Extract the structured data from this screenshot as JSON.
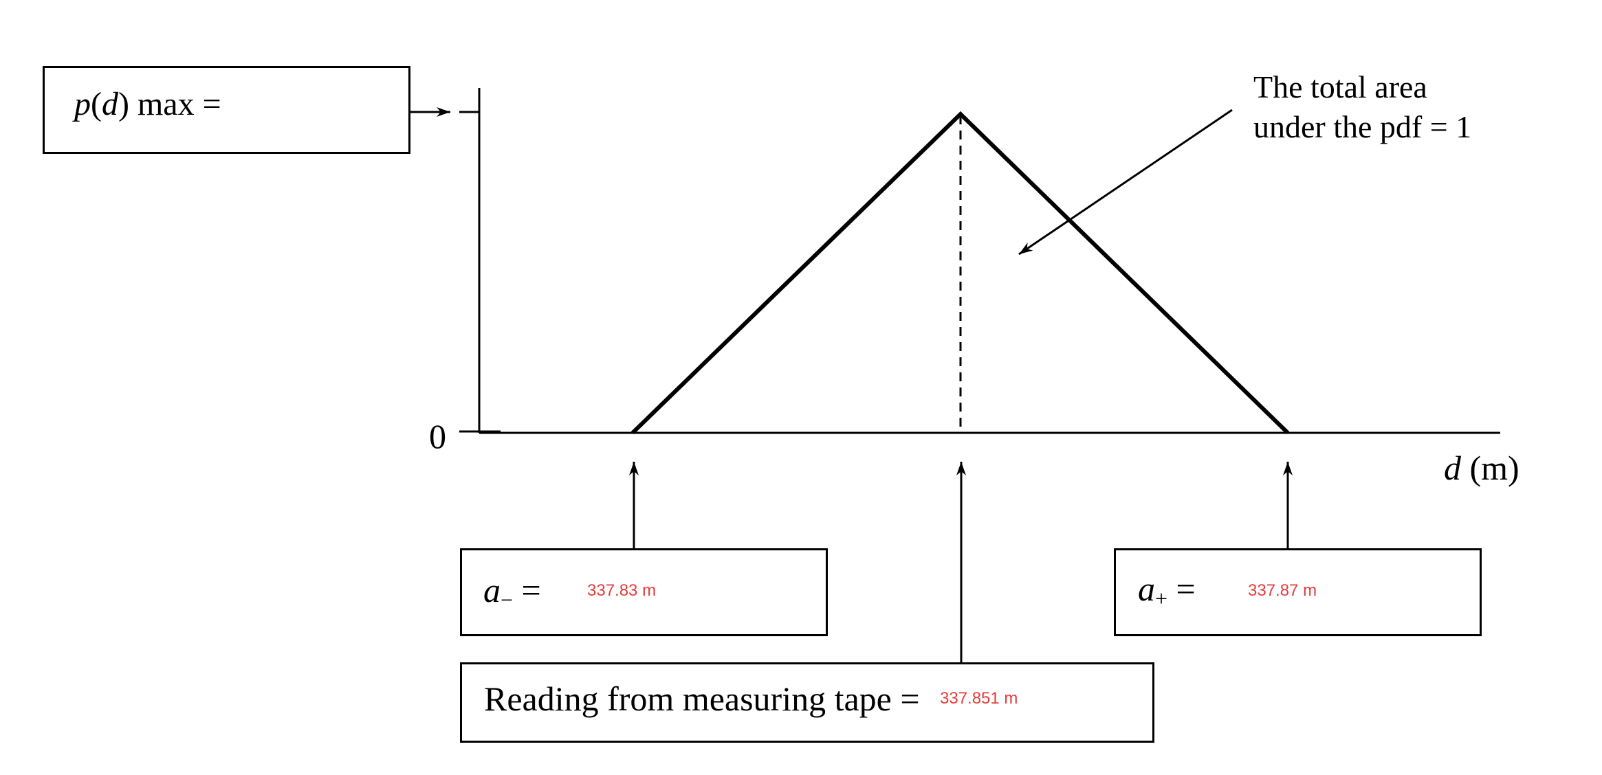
{
  "pmax_box": {
    "var_p": "p",
    "open_paren": "(",
    "var_d": "d",
    "suffix": ") max ="
  },
  "y_axis": {
    "zero_label": "0"
  },
  "x_axis": {
    "var": "d",
    "unit": " (m)"
  },
  "annotation": {
    "line1": "The total area",
    "line2": "under the pdf = 1"
  },
  "a_minus_box": {
    "var": "a",
    "sub": "−",
    "equals": " =",
    "value": "337.83 m"
  },
  "a_plus_box": {
    "var": "a",
    "sub": "+",
    "equals": " =",
    "value": "337.87 m"
  },
  "reading_box": {
    "label": "Reading from measuring tape =",
    "value": "337.851 m"
  },
  "colors": {
    "value_text": "#e83a3a",
    "lines": "#000000"
  },
  "chart_data": {
    "type": "line",
    "x": [
      337.83,
      337.851,
      337.87
    ],
    "y": [
      0,
      1,
      0
    ],
    "xlabel": "d (m)",
    "ylabel": "p(d)"
  }
}
